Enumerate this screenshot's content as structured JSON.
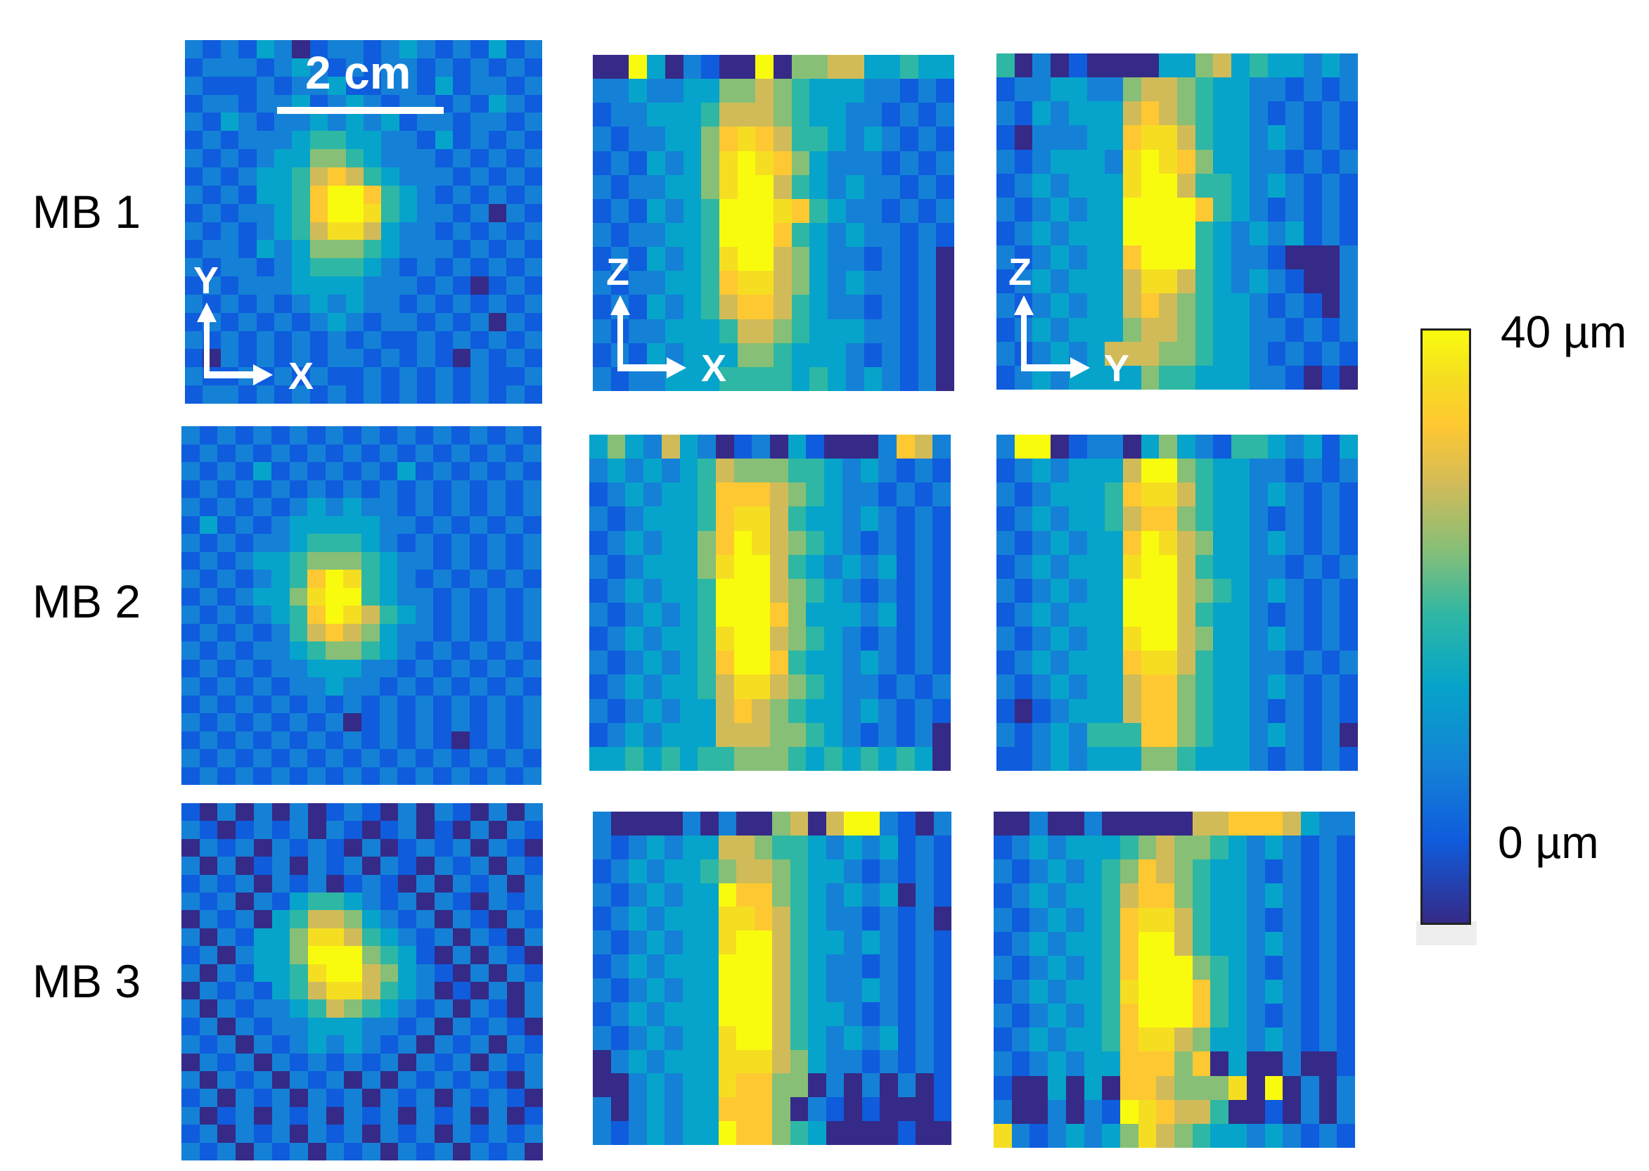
{
  "figure": {
    "row_labels": [
      "MB 1",
      "MB 2",
      "MB 3"
    ],
    "scale_bar_label": "2 cm",
    "axis_labels": {
      "top_view": [
        "Y",
        "X"
      ],
      "xz_view": [
        "Z",
        "X"
      ],
      "yz_view": [
        "Z",
        "Y"
      ]
    }
  },
  "colorbar": {
    "max_label": "40 µm",
    "min_label": "0 µm",
    "colormap": "parula",
    "colors": [
      "#352a87",
      "#0f5cdd",
      "#1481d6",
      "#06a4ca",
      "#2eb7a4",
      "#87bf77",
      "#d1bb59",
      "#fec832",
      "#f5de21",
      "#f9fb0e"
    ]
  },
  "chart_data": {
    "type": "heatmap",
    "value_scale": "levels 0-9 mapped linearly to 0-40 µm",
    "zlim": [
      0,
      40
    ],
    "panels": [
      {
        "row": "MB 1",
        "view": "XY",
        "grid": [
          "21213201221232121312",
          "12221232121221212121",
          "21112122311221312212",
          "12212231232122121321",
          "21321223232312212212",
          "12122234433221312121",
          "21212335543222121212",
          "12123346764322212121",
          "21213347997432121212",
          "12122347998432212021",
          "21212346886322121212",
          "12213235554322212121",
          "21221234443212121212",
          "12122233332221210121",
          "21212123232212121212",
          "12121212321221212021",
          "21212121212112121212",
          "10212121221212102121",
          "21121212112121212112",
          "12212121212121212121"
        ]
      },
      {
        "row": "MB 1",
        "view": "XZ",
        "grid": [
          "00930210090556633433",
          "22322335565433322121",
          "12233346665433221212",
          "21223357876443232121",
          "12132358987532221212",
          "21223358996432322121",
          "12132349998743221212",
          "21223349997432322121",
          "12132348996532212120",
          "21223347886532322120",
          "12132346776432212120",
          "21223334665433322120",
          "12132333554333212120",
          "21223334444343232120"
        ]
      },
      {
        "row": "MB 1",
        "view": "YZ",
        "grid": [
          "40201000033563433232",
          "12233225665433221212",
          "21323336765433212121",
          "10222337886433232121",
          "21233328987533221212",
          "12323338996443232121",
          "21232339999743212121",
          "12323339999432323121",
          "21232337999432210002",
          "12323336886432321002",
          "21232336765433212102",
          "12323335665433221212",
          "21232366655433212121",
          "12323333544333221010"
        ]
      },
      {
        "row": "MB 2",
        "view": "XY",
        "grid": [
          "21212121212121212121",
          "12121212121212121212",
          "21213121212131212121",
          "12121212121212121212",
          "21212123232212121212",
          "13121233333221212121",
          "21212234443212121212",
          "12123345554322121212",
          "21212347984321212121",
          "12123358994322121212",
          "21212347986432121212",
          "12121246765322121212",
          "21212234554321212121",
          "12121223332212121212",
          "21212122322121212121",
          "12121212121212121212",
          "21212121201212121212",
          "12121212121212101212",
          "21212121212121212121",
          "12121212121212121212"
        ]
      },
      {
        "row": "MB 2",
        "view": "XZ",
        "grid": [
          "35326320120310002762",
          "23232346555443232121",
          "12323347776543221212",
          "21233347886433232121",
          "12323357986543212121",
          "21233358996432323121",
          "12323349996543212121",
          "21232349997533323121",
          "12323348996543212121",
          "21232347997433232121",
          "12323346886543221212",
          "21232336765433232121",
          "12323336665543212120",
          "33434344555434343430"
        ]
      },
      {
        "row": "MB 2",
        "view": "YZ",
        "grid": [
          "29901220353214432313",
          "12323336995433221212",
          "21233347886433232121",
          "12323346775433212121",
          "21232337986533232121",
          "12323338996433221212",
          "21232339996543232121",
          "12323339996433212121",
          "21232338996533232121",
          "12323337886433221212",
          "21232336775433232121",
          "10123336775433212121",
          "21232444775433232120",
          "11232333554333212121"
        ]
      },
      {
        "row": "MB 3",
        "view": "XY",
        "grid": [
          "10202020121020210202",
          "21012120210120102021",
          "02120212102012120210",
          "20201202120210212021",
          "12120212012102021202",
          "21202134432120210212",
          "02120346653212021021",
          "20213358864321202102",
          "12023359995431020210",
          "20213348996532102021",
          "02121346886432010202",
          "20212234654321202102",
          "12021223332212021210",
          "21202123232120212021",
          "02120212121202120212",
          "20212021202021212102",
          "12021202120212021210",
          "20120212021202120201",
          "12021202120212021212",
          "21202120212021202120"
        ]
      },
      {
        "row": "MB 3",
        "view": "XZ",
        "grid": [
          "20000202005606992102",
          "21232336654432323121",
          "12323345665433212121",
          "21232339775432323021",
          "12323338876432212120",
          "21232338996433232121",
          "12323339996432212121",
          "21232339996432232121",
          "12323339996433212121",
          "21232338996432323121",
          "02323338886532212121",
          "00232338775502020201",
          "20232337775021010001",
          "21232339775430000100"
        ]
      },
      {
        "row": "MB 3",
        "view": "YZ",
        "grid": [
          "00200200000667776322",
          "12323334565543232121",
          "21232345765433212121",
          "12323346775433232121",
          "21232347886433212121",
          "12323347996433232121",
          "21232347999543212121",
          "12323348999743232121",
          "21232347999743212121",
          "12323347886533232121",
          "21232337775703002001",
          "10030307765558090202",
          "20020219876640010202",
          "82123235865433232121"
        ]
      }
    ]
  }
}
